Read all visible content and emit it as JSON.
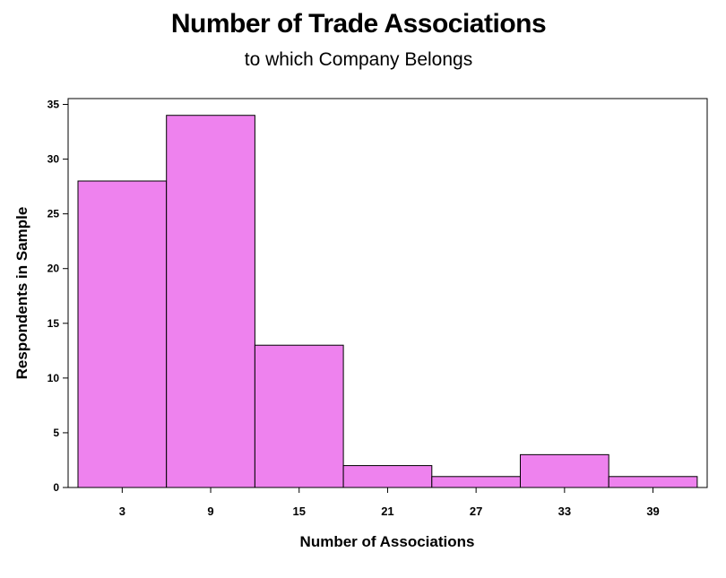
{
  "chart_data": {
    "type": "bar",
    "title": "Number of Trade Associations",
    "subtitle": "to which Company Belongs",
    "xlabel": "Number of Associations",
    "ylabel": "Respondents in Sample",
    "categories": [
      "3",
      "9",
      "15",
      "21",
      "27",
      "33",
      "39"
    ],
    "values": [
      28,
      34,
      13,
      2,
      1,
      3,
      1
    ],
    "ylim": [
      0,
      35
    ],
    "yticks": [
      "0",
      "5",
      "10",
      "15",
      "20",
      "25",
      "30",
      "35"
    ],
    "grid": false,
    "bar_color": "#EE82EE",
    "edge_color": "#000000"
  }
}
